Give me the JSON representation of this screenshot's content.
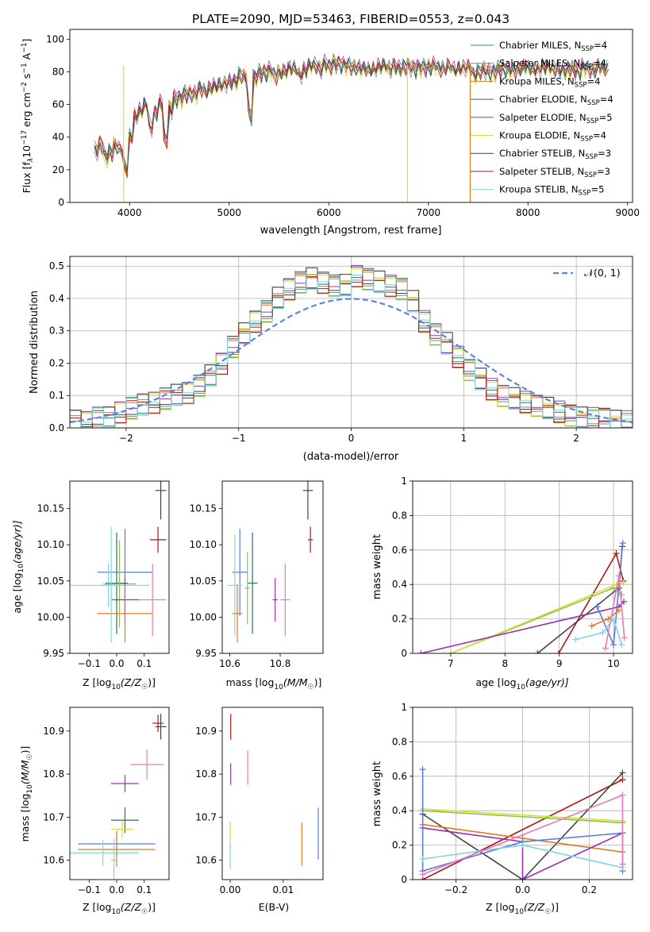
{
  "title": "PLATE=2090, MJD=53463, FIBERID=0553, z=0.043",
  "colors": {
    "chabrier_miles": "#2e8b7a",
    "salpeter_miles": "#888888",
    "kroupa_miles": "#e07b20",
    "chabrier_elodie": "#2f6f5f",
    "salpeter_elodie": "#9b30b0",
    "kroupa_elodie": "#d8e03a",
    "chabrier_stelib": "#444444",
    "salpeter_stelib": "#b01818",
    "kroupa_stelib": "#7fd6dc",
    "gauss": "#5a86d8",
    "blue": "#5b7bdc",
    "pink": "#e67aba",
    "green": "#8bc34a"
  },
  "chart_data": [
    {
      "id": "spectrum",
      "type": "line",
      "xlabel": "wavelength [Angstrom, rest frame]",
      "ylabel_main": "Flux [f",
      "ylabel_sub": "λ",
      "ylabel_mid": "10",
      "ylabel_sup1": "−17",
      "ylabel_mid2": " erg cm",
      "ylabel_sup2": "−2",
      "ylabel_mid3": " s",
      "ylabel_sup3": "−1",
      "ylabel_mid4": " A",
      "ylabel_sup4": "−1",
      "ylabel_end": "]",
      "xlim": [
        3400,
        9050
      ],
      "ylim": [
        0,
        106
      ],
      "xticks": [
        4000,
        5000,
        6000,
        7000,
        8000,
        9000
      ],
      "yticks": [
        0,
        20,
        40,
        60,
        80,
        100
      ],
      "x": [
        3650,
        3700,
        3750,
        3800,
        3850,
        3900,
        3950,
        4000,
        4050,
        4100,
        4150,
        4200,
        4250,
        4300,
        4350,
        4400,
        4450,
        4500,
        4550,
        4600,
        4650,
        4700,
        4750,
        4800,
        4850,
        4900,
        4950,
        5000,
        5050,
        5100,
        5150,
        5200,
        5250,
        5300,
        5350,
        5400,
        5450,
        5500,
        5550,
        5600,
        5650,
        5700,
        5750,
        5800,
        5850,
        5900,
        5950,
        6000,
        6050,
        6100,
        6150,
        6200,
        6250,
        6300,
        6350,
        6400,
        6450,
        6500,
        6550,
        6600,
        6650,
        6700,
        6750,
        6800,
        6850,
        6900,
        6950,
        7000,
        7050,
        7100,
        7150,
        7200,
        7250,
        7300,
        7350,
        7400,
        7450,
        7500,
        7550,
        7600,
        7650,
        7700,
        7750,
        7800,
        7850,
        7900,
        7950,
        8000,
        8050,
        8100,
        8150,
        8200,
        8250,
        8300,
        8350,
        8400,
        8450,
        8500,
        8550,
        8600,
        8650,
        8700,
        8750,
        8800
      ],
      "y": [
        35,
        38,
        30,
        33,
        37,
        34,
        22,
        42,
        55,
        58,
        62,
        48,
        57,
        63,
        40,
        60,
        66,
        66,
        69,
        69,
        68,
        72,
        70,
        72,
        73,
        74,
        75,
        76,
        76,
        80,
        79,
        55,
        79,
        82,
        82,
        83,
        80,
        82,
        82,
        84,
        84,
        80,
        83,
        86,
        86,
        84,
        87,
        85,
        88,
        87,
        86,
        86,
        85,
        84,
        84,
        83,
        84,
        85,
        86,
        84,
        86,
        84,
        85,
        86,
        84,
        85,
        85,
        85,
        86,
        84,
        84,
        86,
        83,
        84,
        85,
        85,
        80,
        82,
        84,
        82,
        82,
        84,
        84,
        83,
        83,
        84,
        85,
        84,
        83,
        84,
        85,
        85,
        84,
        84,
        83,
        84,
        84,
        83,
        85,
        84,
        83,
        85,
        84,
        84
      ],
      "series": [
        {
          "name": "Chabrier MILES, N",
          "sub": "SSP",
          "suffix": "=4"
        },
        {
          "name": "Salpeter MILES, N",
          "sub": "SSP",
          "suffix": "=4"
        },
        {
          "name": "Kroupa MILES, N",
          "sub": "SSP",
          "suffix": "=4"
        },
        {
          "name": "Chabrier ELODIE, N",
          "sub": "SSP",
          "suffix": "=4"
        },
        {
          "name": "Salpeter ELODIE, N",
          "sub": "SSP",
          "suffix": "=5"
        },
        {
          "name": "Kroupa ELODIE, N",
          "sub": "SSP",
          "suffix": "=4"
        },
        {
          "name": "Chabrier STELIB, N",
          "sub": "SSP",
          "suffix": "=3"
        },
        {
          "name": "Salpeter STELIB, N",
          "sub": "SSP",
          "suffix": "=3"
        },
        {
          "name": "Kroupa STELIB, N",
          "sub": "SSP",
          "suffix": "=5"
        }
      ],
      "legend": "top-right",
      "grid": false
    },
    {
      "id": "residuals",
      "type": "line",
      "xlabel": "(data-model)/error",
      "ylabel": "Normed distribution",
      "xlim": [
        -2.5,
        2.5
      ],
      "ylim": [
        0,
        0.53
      ],
      "xticks": [
        -2,
        -1,
        0,
        1,
        2
      ],
      "xticklabels": [
        "−2",
        "−1",
        "0",
        "1",
        "2"
      ],
      "yticks": [
        0.0,
        0.1,
        0.2,
        0.3,
        0.4,
        0.5
      ],
      "legend_label": "𝒩(0, 1)",
      "legend": "top-right",
      "grid": true,
      "bin_width": 0.1,
      "x": [
        -2.5,
        -2.4,
        -2.3,
        -2.2,
        -2.1,
        -2.0,
        -1.9,
        -1.8,
        -1.7,
        -1.6,
        -1.5,
        -1.4,
        -1.3,
        -1.2,
        -1.1,
        -1.0,
        -0.9,
        -0.8,
        -0.7,
        -0.6,
        -0.5,
        -0.4,
        -0.3,
        -0.2,
        -0.1,
        0.0,
        0.1,
        0.2,
        0.3,
        0.4,
        0.5,
        0.6,
        0.7,
        0.8,
        0.9,
        1.0,
        1.1,
        1.2,
        1.3,
        1.4,
        1.5,
        1.6,
        1.7,
        1.8,
        1.9,
        2.0,
        2.1,
        2.2,
        2.3,
        2.4
      ],
      "y": [
        0.02,
        0.02,
        0.03,
        0.03,
        0.05,
        0.06,
        0.07,
        0.08,
        0.09,
        0.1,
        0.11,
        0.13,
        0.16,
        0.2,
        0.25,
        0.29,
        0.33,
        0.36,
        0.4,
        0.43,
        0.45,
        0.46,
        0.45,
        0.44,
        0.44,
        0.47,
        0.46,
        0.45,
        0.44,
        0.43,
        0.39,
        0.33,
        0.29,
        0.26,
        0.22,
        0.18,
        0.15,
        0.12,
        0.1,
        0.09,
        0.08,
        0.07,
        0.06,
        0.05,
        0.04,
        0.03,
        0.03,
        0.03,
        0.02,
        0.02
      ]
    },
    {
      "id": "age_vs_Z",
      "type": "scatter",
      "xlabel": "Z [log",
      "xlabel_sub": "10",
      "xlabel_end": "(Z/Z",
      "xlabel_sun": "☉",
      "xlabel_close": ")]",
      "ylabel": "age  [log",
      "ylabel_sub": "10",
      "ylabel_end": "(age/yr)]",
      "xlim": [
        -0.17,
        0.19
      ],
      "ylim": [
        9.95,
        10.188
      ],
      "xticks": [
        -0.1,
        0.0,
        0.1
      ],
      "xticklabels": [
        "−0.1",
        "0.0",
        "0.1"
      ],
      "yticks": [
        9.95,
        10.0,
        10.05,
        10.1,
        10.15
      ],
      "yticklabels": [
        "9.95",
        "10.00",
        "10.05",
        "10.10",
        "10.15"
      ],
      "points": [
        {
          "x": 0.16,
          "y": 10.175,
          "xerr": 0.02,
          "yerr": 0.04,
          "c": "chabrier_stelib"
        },
        {
          "x": 0.15,
          "y": 10.107,
          "xerr": 0.03,
          "yerr": 0.018,
          "c": "salpeter_stelib"
        },
        {
          "x": 0.03,
          "y": 10.062,
          "xerr": 0.1,
          "yerr": 0.06,
          "c": "blue"
        },
        {
          "x": 0.0,
          "y": 10.047,
          "xerr": 0.04,
          "yerr": 0.07,
          "c": "chabrier_elodie"
        },
        {
          "x": -0.03,
          "y": 10.044,
          "xerr": 0.15,
          "yerr": 0.03,
          "c": "kroupa_stelib"
        },
        {
          "x": 0.01,
          "y": 10.046,
          "xerr": 0.06,
          "yerr": 0.06,
          "c": "green"
        },
        {
          "x": 0.13,
          "y": 10.024,
          "xerr": 0.05,
          "yerr": 0.05,
          "c": "pink"
        },
        {
          "x": 0.03,
          "y": 10.024,
          "xerr": 0.05,
          "yerr": 0.03,
          "c": "salpeter_elodie"
        },
        {
          "x": 0.03,
          "y": 10.005,
          "xerr": 0.1,
          "yerr": 0.04,
          "c": "kroupa_miles"
        },
        {
          "x": -0.02,
          "y": 10.045,
          "xerr": 0.02,
          "yerr": 0.08,
          "c": "kroupa_stelib"
        }
      ]
    },
    {
      "id": "age_vs_mass",
      "type": "scatter",
      "xlabel": "mass [log",
      "xlabel_sub": "10",
      "xlabel_end": "(M/M",
      "xlabel_sun": "☉",
      "xlabel_close": ")]",
      "xlim": [
        10.57,
        10.97
      ],
      "ylim": [
        9.95,
        10.188
      ],
      "xticks": [
        10.6,
        10.8
      ],
      "xticklabels": [
        "10.6",
        "10.8"
      ],
      "yticks": [
        9.95,
        10.0,
        10.05,
        10.1,
        10.15
      ],
      "yticklabels": [
        "9.95",
        "10.00",
        "10.05",
        "10.10",
        "10.15"
      ],
      "points": [
        {
          "x": 10.91,
          "y": 10.175,
          "xerr": 0.02,
          "yerr": 0.04,
          "c": "chabrier_stelib"
        },
        {
          "x": 10.92,
          "y": 10.107,
          "xerr": 0.01,
          "yerr": 0.018,
          "c": "salpeter_stelib"
        },
        {
          "x": 10.64,
          "y": 10.062,
          "xerr": 0.03,
          "yerr": 0.06,
          "c": "blue"
        },
        {
          "x": 10.69,
          "y": 10.047,
          "xerr": 0.02,
          "yerr": 0.07,
          "c": "chabrier_elodie"
        },
        {
          "x": 10.62,
          "y": 10.044,
          "xerr": 0.03,
          "yerr": 0.07,
          "c": "kroupa_stelib"
        },
        {
          "x": 10.67,
          "y": 10.04,
          "xerr": 0.01,
          "yerr": 0.05,
          "c": "green"
        },
        {
          "x": 10.82,
          "y": 10.024,
          "xerr": 0.02,
          "yerr": 0.05,
          "c": "pink"
        },
        {
          "x": 10.78,
          "y": 10.024,
          "xerr": 0.01,
          "yerr": 0.03,
          "c": "salpeter_elodie"
        },
        {
          "x": 10.63,
          "y": 10.005,
          "xerr": 0.02,
          "yerr": 0.04,
          "c": "kroupa_miles"
        }
      ]
    },
    {
      "id": "weight_vs_age",
      "type": "line",
      "xlabel": "age  [log",
      "xlabel_sub": "10",
      "xlabel_end": "(age/yr)]",
      "ylabel": "mass weight",
      "xlim": [
        6.3,
        10.35
      ],
      "ylim": [
        0,
        1.0
      ],
      "xticks": [
        7,
        8,
        9,
        10
      ],
      "yticks": [
        0.0,
        0.2,
        0.4,
        0.6,
        0.8,
        1.0
      ],
      "grid": true,
      "lines": [
        {
          "c": "salpeter_stelib",
          "x": [
            8.99,
            10.05,
            10.18
          ],
          "y": [
            0.0,
            0.58,
            0.42
          ]
        },
        {
          "c": "chabrier_stelib",
          "x": [
            8.6,
            10.1,
            10.16
          ],
          "y": [
            0.0,
            0.38,
            0.62
          ]
        },
        {
          "c": "green",
          "x": [
            7.0,
            10.0,
            10.15
          ],
          "y": [
            0.0,
            0.38,
            0.34
          ]
        },
        {
          "c": "kroupa_elodie",
          "x": [
            7.0,
            10.05,
            10.18
          ],
          "y": [
            0.0,
            0.4,
            0.41
          ]
        },
        {
          "c": "salpeter_elodie",
          "x": [
            6.45,
            10.1,
            10.19
          ],
          "y": [
            0.0,
            0.27,
            0.3
          ]
        },
        {
          "c": "blue",
          "x": [
            9.7,
            10.0,
            10.17
          ],
          "y": [
            0.27,
            0.05,
            0.64
          ]
        },
        {
          "c": "kroupa_stelib",
          "x": [
            9.3,
            9.8,
            10.0,
            10.15
          ],
          "y": [
            0.08,
            0.12,
            0.2,
            0.05
          ]
        },
        {
          "c": "kroupa_miles",
          "x": [
            9.6,
            9.9,
            10.1
          ],
          "y": [
            0.16,
            0.2,
            0.25
          ]
        },
        {
          "c": "pink",
          "x": [
            9.85,
            10.1,
            10.2
          ],
          "y": [
            0.03,
            0.45,
            0.09
          ]
        }
      ]
    },
    {
      "id": "mass_vs_Z",
      "type": "scatter",
      "xlabel": "Z [log",
      "xlabel_sub": "10",
      "xlabel_end": "(Z/Z",
      "xlabel_sun": "☉",
      "xlabel_close": ")]",
      "ylabel": "mass [log",
      "ylabel_sub": "10",
      "ylabel_end": "(M/M",
      "ylabel_sun": "☉",
      "ylabel_close": ")]",
      "xlim": [
        -0.17,
        0.19
      ],
      "ylim": [
        10.555,
        10.955
      ],
      "xticks": [
        -0.1,
        0.0,
        0.1
      ],
      "xticklabels": [
        "−0.1",
        "0.0",
        "0.1"
      ],
      "yticks": [
        10.6,
        10.7,
        10.8,
        10.9
      ],
      "yticklabels": [
        "10.6",
        "10.7",
        "10.8",
        "10.9"
      ],
      "points": [
        {
          "x": 0.16,
          "y": 10.91,
          "xerr": 0.02,
          "yerr": 0.03,
          "c": "chabrier_stelib"
        },
        {
          "x": 0.15,
          "y": 10.918,
          "xerr": 0.02,
          "yerr": 0.02,
          "c": "salpeter_stelib"
        },
        {
          "x": 0.11,
          "y": 10.822,
          "xerr": 0.06,
          "yerr": 0.035,
          "c": "pink"
        },
        {
          "x": 0.03,
          "y": 10.778,
          "xerr": 0.05,
          "yerr": 0.02,
          "c": "salpeter_elodie"
        },
        {
          "x": 0.03,
          "y": 10.693,
          "xerr": 0.05,
          "yerr": 0.03,
          "c": "chabrier_elodie"
        },
        {
          "x": 0.02,
          "y": 10.672,
          "xerr": 0.04,
          "yerr": 0.02,
          "c": "kroupa_elodie"
        },
        {
          "x": 0.0,
          "y": 10.638,
          "xerr": 0.14,
          "yerr": 0.03,
          "c": "blue"
        },
        {
          "x": 0.0,
          "y": 10.625,
          "xerr": 0.14,
          "yerr": 0.04,
          "c": "kroupa_miles"
        },
        {
          "x": -0.05,
          "y": 10.617,
          "xerr": 0.13,
          "yerr": 0.03,
          "c": "kroupa_stelib"
        },
        {
          "x": -0.01,
          "y": 10.6,
          "xerr": 0.01,
          "yerr": 0.05,
          "c": "kroupa_stelib"
        }
      ]
    },
    {
      "id": "mass_vs_ebv",
      "type": "scatter",
      "xlabel": "E(B-V)",
      "xlim": [
        -0.0015,
        0.0175
      ],
      "ylim": [
        10.555,
        10.955
      ],
      "xticks": [
        0.0,
        0.01
      ],
      "xticklabels": [
        "0.00",
        "0.01"
      ],
      "yticks": [
        10.6,
        10.7,
        10.8,
        10.9
      ],
      "yticklabels": [
        "10.6",
        "10.7",
        "10.8",
        "10.9"
      ],
      "points": [
        {
          "x": 0.0001,
          "y": 10.91,
          "xerr": 0.0,
          "yerr": 0.03,
          "c": "salpeter_stelib"
        },
        {
          "x": 0.0001,
          "y": 10.8,
          "xerr": 0.0,
          "yerr": 0.025,
          "c": "salpeter_elodie"
        },
        {
          "x": 0.0033,
          "y": 10.815,
          "xerr": 0.0,
          "yerr": 0.04,
          "c": "pink"
        },
        {
          "x": 0.0,
          "y": 10.66,
          "xerr": 0.0,
          "yerr": 0.03,
          "c": "kroupa_elodie"
        },
        {
          "x": 0.0,
          "y": 10.61,
          "xerr": 0.0,
          "yerr": 0.03,
          "c": "kroupa_stelib"
        },
        {
          "x": 0.0135,
          "y": 10.637,
          "xerr": 0.0,
          "yerr": 0.05,
          "c": "kroupa_miles"
        },
        {
          "x": 0.0166,
          "y": 10.662,
          "xerr": 0.0,
          "yerr": 0.06,
          "c": "blue"
        }
      ]
    },
    {
      "id": "weight_vs_Z",
      "type": "line",
      "xlabel": "Z [log",
      "xlabel_sub": "10",
      "xlabel_end": "(Z/Z",
      "xlabel_sun": "☉",
      "xlabel_close": ")]",
      "ylabel": "mass weight",
      "xlim": [
        -0.33,
        0.33
      ],
      "ylim": [
        0,
        1.0
      ],
      "xticks": [
        -0.2,
        0.0,
        0.2
      ],
      "xticklabels": [
        "−0.2",
        "0.0",
        "0.2"
      ],
      "yticks": [
        0.0,
        0.2,
        0.4,
        0.6,
        0.8,
        1.0
      ],
      "grid": true,
      "lines": [
        {
          "c": "salpeter_stelib",
          "x": [
            -0.3,
            0.3
          ],
          "y": [
            0.0,
            0.58
          ]
        },
        {
          "c": "chabrier_stelib",
          "x": [
            -0.3,
            0.0,
            0.3
          ],
          "y": [
            0.38,
            0.0,
            0.62
          ]
        },
        {
          "c": "kroupa_elodie",
          "x": [
            -0.3,
            0.3
          ],
          "y": [
            0.41,
            0.34
          ]
        },
        {
          "c": "green",
          "x": [
            -0.3,
            0.3
          ],
          "y": [
            0.4,
            0.33
          ]
        },
        {
          "c": "kroupa_miles",
          "x": [
            -0.3,
            0.0,
            0.3
          ],
          "y": [
            0.32,
            0.24,
            0.16
          ]
        },
        {
          "c": "salpeter_elodie",
          "x": [
            -0.3,
            0.0,
            0.0,
            0.3
          ],
          "y": [
            0.3,
            0.22,
            0.0,
            0.27
          ]
        },
        {
          "c": "blue",
          "x": [
            -0.3,
            -0.3,
            0.0,
            0.3,
            0.3
          ],
          "y": [
            0.64,
            0.05,
            0.22,
            0.27,
            0.05
          ]
        },
        {
          "c": "kroupa_stelib",
          "x": [
            -0.3,
            0.0,
            0.3
          ],
          "y": [
            0.12,
            0.2,
            0.07
          ]
        },
        {
          "c": "pink",
          "x": [
            -0.3,
            0.3,
            0.3
          ],
          "y": [
            0.03,
            0.49,
            0.09
          ]
        }
      ]
    }
  ]
}
